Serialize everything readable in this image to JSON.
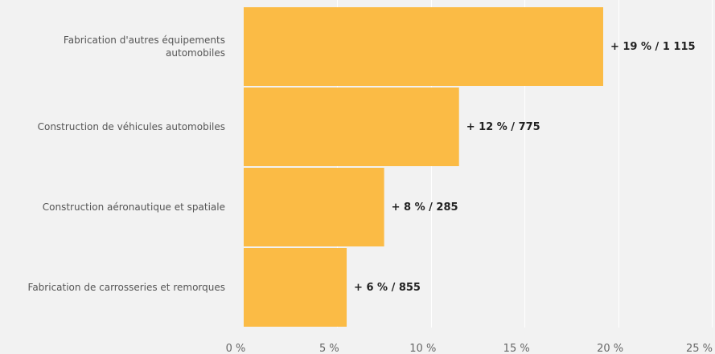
{
  "chart_data": {
    "type": "bar",
    "orientation": "horizontal",
    "categories": [
      [
        "Fabrication d'autres équipements",
        "automobiles"
      ],
      [
        "Construction de véhicules automobiles"
      ],
      [
        "Construction aéronautique et spatiale"
      ],
      [
        "Fabrication de carrosseries et remorques"
      ]
    ],
    "values": [
      19.2,
      11.5,
      7.5,
      5.5
    ],
    "data_labels": [
      "+ 19 % / 1 115",
      "+ 12 % / 775",
      "+ 8 % / 285",
      "+ 6 % / 855"
    ],
    "xlim": [
      0,
      25
    ],
    "xticks": [
      0,
      5,
      10,
      15,
      20,
      25
    ],
    "xtick_labels": [
      "0 %",
      "5 %",
      "10 %",
      "15 %",
      "20 %",
      "25 %"
    ],
    "grid": true,
    "legend": "none",
    "colors": {
      "bar": "#fbbb45",
      "background": "#f2f2f2",
      "grid": "#ffffff"
    }
  }
}
